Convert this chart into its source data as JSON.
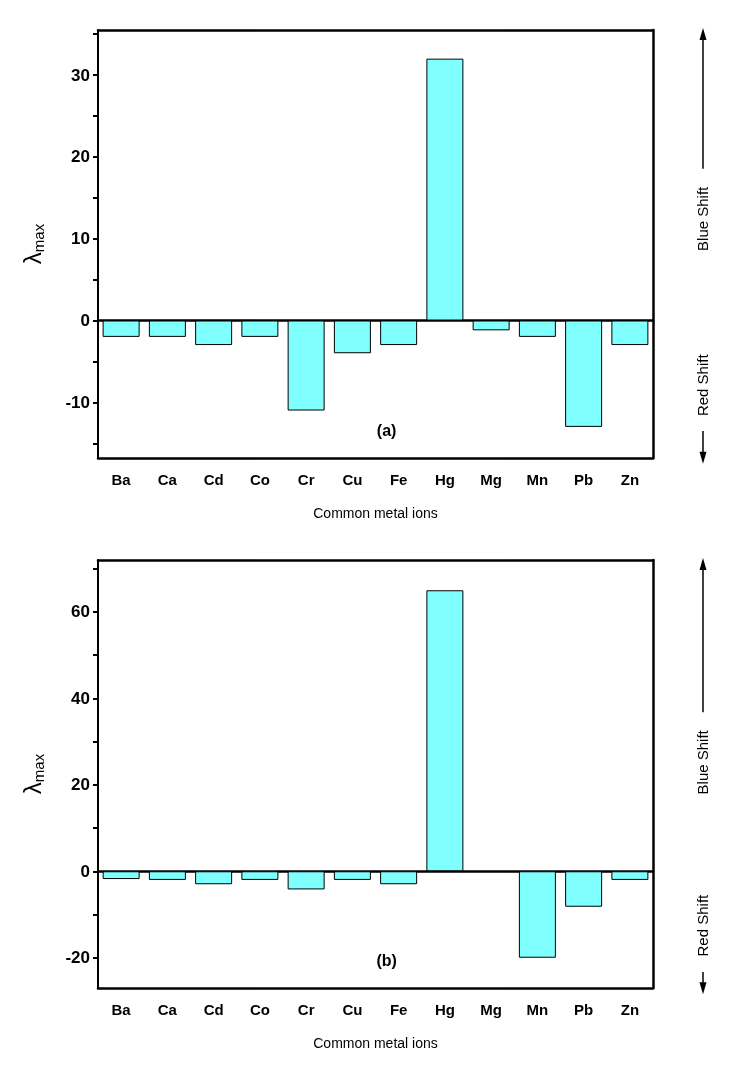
{
  "chart_data": [
    {
      "type": "bar",
      "categories": [
        "Ba",
        "Ca",
        "Cd",
        "Co",
        "Cr",
        "Cu",
        "Fe",
        "Hg",
        "Mg",
        "Mn",
        "Pb",
        "Zn"
      ],
      "values": [
        -2,
        -2,
        -3,
        -2,
        -11,
        -4,
        -3,
        32,
        -1.2,
        -2,
        -13,
        -3
      ],
      "color": "#80ffff",
      "xlabel": "Common metal ions",
      "ylabel": "λ$_{max}$",
      "ylim": [
        -16.8,
        35.5
      ],
      "yticks": [
        {
          "value": -15,
          "label": null
        },
        -10,
        {
          "value": -5,
          "label": null
        },
        0,
        {
          "value": 5,
          "label": null
        },
        10,
        {
          "value": 15,
          "label": null
        },
        20,
        {
          "value": 25,
          "label": null
        },
        30,
        {
          "value": 35,
          "label": null
        }
      ],
      "annotations": [
        "(a)",
        "Blue Shift",
        "Red Shift"
      ]
    },
    {
      "type": "bar",
      "categories": [
        "Ba",
        "Ca",
        "Cd",
        "Co",
        "Cr",
        "Cu",
        "Fe",
        "Hg",
        "Mg",
        "Mn",
        "Pb",
        "Zn"
      ],
      "values": [
        -1.8,
        -2,
        -3,
        -2,
        -4.2,
        -2,
        -3,
        65,
        null,
        -20,
        -8.2,
        -2
      ],
      "color": "#80ffff",
      "xlabel": "Common metal ions",
      "ylabel": "λ$_{max}$",
      "ylim": [
        -27,
        72
      ],
      "yticks": [
        -20,
        {
          "value": -10,
          "label": null
        },
        0,
        {
          "value": 10,
          "label": null
        },
        20,
        {
          "value": 30,
          "label": null
        },
        40,
        {
          "value": 50,
          "label": null
        },
        60,
        {
          "value": 70,
          "label": null
        }
      ],
      "annotations": [
        "(b)",
        "Blue Shift",
        "Red Shift"
      ]
    }
  ]
}
